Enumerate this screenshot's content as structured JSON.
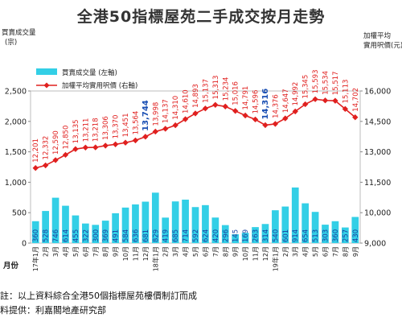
{
  "chart_data": {
    "type": "bar",
    "title": "全港50指標屋苑二手成交按月走勢",
    "categories": [
      "17年1月",
      "2月",
      "3月",
      "4月",
      "5月",
      "6月",
      "7月",
      "8月",
      "9月",
      "10月",
      "11月",
      "12月",
      "18年1月",
      "2月",
      "3月",
      "4月",
      "5月",
      "6月",
      "7月",
      "8月",
      "9月",
      "10月",
      "11月",
      "12月",
      "19年1月",
      "2月",
      "3月",
      "4月",
      "5月",
      "6月",
      "7月",
      "8月",
      "9月"
    ],
    "x_unit_label": "月份",
    "left_axis": {
      "label_line1": "買賣成交量",
      "label_line2": "(宗)",
      "ticks": [
        "0",
        "500",
        "1,000",
        "1,500",
        "2,000",
        "2,500"
      ],
      "ylim": [
        0,
        2500
      ]
    },
    "right_axis": {
      "label_line1": "加權平均",
      "label_line2": "實用呎價(元)",
      "ticks": [
        "9,000",
        "10,000",
        "11,500",
        "13,000",
        "14,500",
        "16,000"
      ],
      "ylim": [
        9000,
        16000
      ]
    },
    "series": [
      {
        "name": "買賣成交量 (左軸)",
        "type": "bar",
        "color": "#33cfe6",
        "values": [
          360,
          528,
          746,
          614,
          455,
          322,
          300,
          369,
          491,
          584,
          636,
          681,
          829,
          419,
          685,
          714,
          592,
          624,
          420,
          296,
          145,
          169,
          263,
          314,
          540,
          601,
          914,
          654,
          513,
          303,
          360,
          257,
          430
        ],
        "labels": [
          "360",
          "528",
          "746",
          "614",
          "455",
          "322",
          "300",
          "369",
          "491",
          "584",
          "636",
          "681",
          "829",
          "419",
          "685",
          "714",
          "592",
          "624",
          "420",
          "296",
          "145",
          "169",
          "263",
          "314",
          "540",
          "601",
          "914",
          "654",
          "513",
          "303",
          "360",
          "257",
          "430"
        ]
      },
      {
        "name": "加權平均實用呎價 (右軸)",
        "type": "line",
        "color": "#e0201f",
        "values": [
          12201,
          12332,
          12590,
          12850,
          13135,
          13211,
          13218,
          13306,
          13370,
          13451,
          13564,
          13744,
          13998,
          14137,
          14310,
          14610,
          14893,
          15137,
          15313,
          15234,
          15016,
          14791,
          14596,
          14316,
          14376,
          14647,
          14992,
          15345,
          15593,
          15534,
          15517,
          15113,
          14702
        ],
        "labels": [
          "12,201",
          "12,332",
          "12,590",
          "12,850",
          "13,135",
          "13,211",
          "13,218",
          "13,306",
          "13,370",
          "13,451",
          "13,564",
          "13,744",
          "13,998",
          "14,137",
          "14,310",
          "14,610",
          "14,893",
          "15,137",
          "15,313",
          "15,234",
          "15,016",
          "14,791",
          "14,596",
          "14,316",
          "14,376",
          "14,647",
          "14,992",
          "15,345",
          "15,593",
          "15,534",
          "15,517",
          "15,113",
          "14,702"
        ]
      }
    ],
    "highlight_label_color": "#1a4fb3",
    "highlight_indices": [
      11,
      23
    ],
    "legend_position": "top-left",
    "grid": false
  },
  "notes": {
    "note": "註：以上資料綜合全港50個指標屋苑樓價制訂而成",
    "source": "料提供：利嘉閣地產研究部"
  }
}
